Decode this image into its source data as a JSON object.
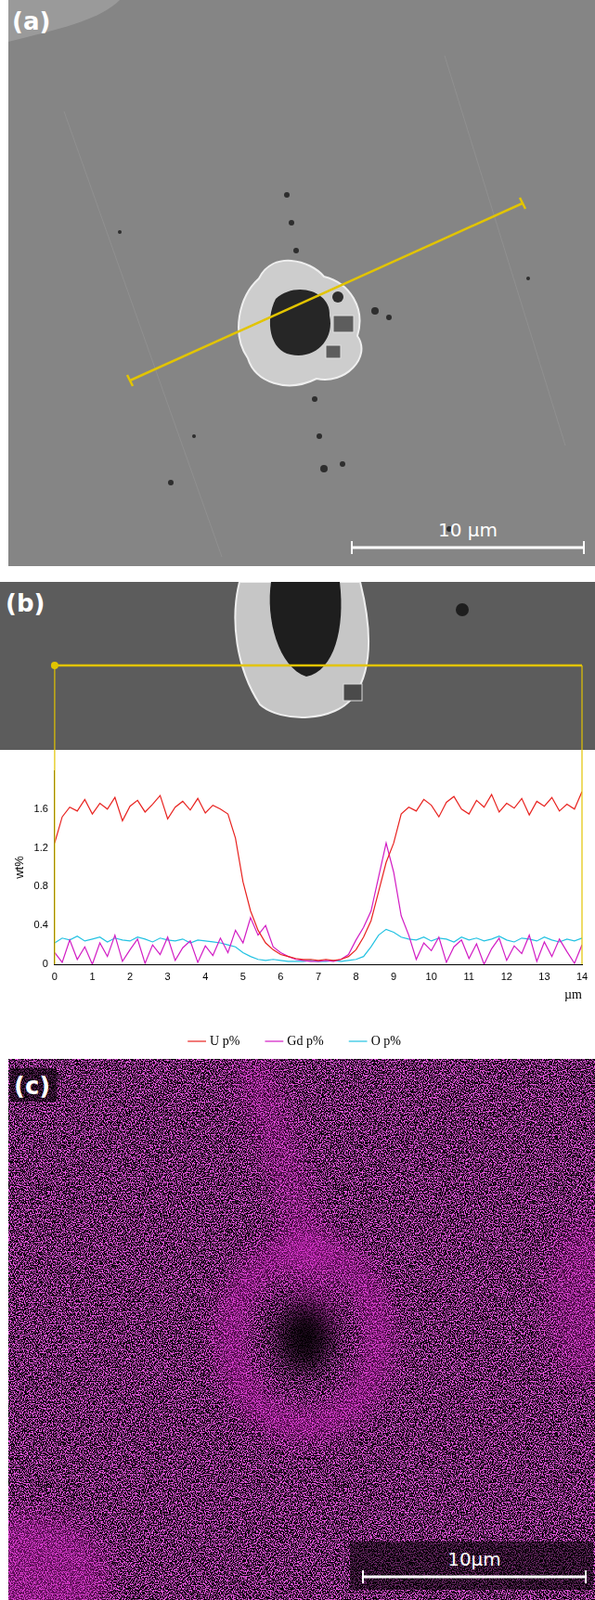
{
  "panels": {
    "a": {
      "label": "(a)",
      "scale_bar": "10 µm"
    },
    "b": {
      "label": "(b)"
    },
    "c": {
      "label": "(c)",
      "scale_bar": "10µm"
    }
  },
  "chart_data": {
    "type": "line",
    "x_label": "µm",
    "y_label": "wt%",
    "x": [
      0,
      0.2,
      0.4,
      0.6,
      0.8,
      1,
      1.2,
      1.4,
      1.6,
      1.8,
      2,
      2.2,
      2.4,
      2.6,
      2.8,
      3,
      3.2,
      3.4,
      3.6,
      3.8,
      4,
      4.2,
      4.4,
      4.6,
      4.8,
      5,
      5.2,
      5.4,
      5.6,
      5.8,
      6,
      6.2,
      6.4,
      6.6,
      6.8,
      7,
      7.2,
      7.4,
      7.6,
      7.8,
      8,
      8.2,
      8.4,
      8.6,
      8.8,
      9,
      9.2,
      9.4,
      9.6,
      9.8,
      10,
      10.2,
      10.4,
      10.6,
      10.8,
      11,
      11.2,
      11.4,
      11.6,
      11.8,
      12,
      12.2,
      12.4,
      12.6,
      12.8,
      13,
      13.2,
      13.4,
      13.6,
      13.8,
      14
    ],
    "series": [
      {
        "name": "U p%",
        "color": "#e8221f",
        "values": [
          1.25,
          1.52,
          1.62,
          1.58,
          1.7,
          1.55,
          1.66,
          1.6,
          1.72,
          1.48,
          1.63,
          1.69,
          1.57,
          1.65,
          1.74,
          1.5,
          1.62,
          1.68,
          1.59,
          1.71,
          1.56,
          1.64,
          1.6,
          1.55,
          1.3,
          0.85,
          0.55,
          0.35,
          0.22,
          0.15,
          0.1,
          0.08,
          0.06,
          0.05,
          0.05,
          0.04,
          0.05,
          0.04,
          0.05,
          0.08,
          0.15,
          0.28,
          0.45,
          0.75,
          1.05,
          1.25,
          1.55,
          1.62,
          1.58,
          1.7,
          1.64,
          1.52,
          1.67,
          1.73,
          1.6,
          1.55,
          1.69,
          1.62,
          1.75,
          1.57,
          1.66,
          1.61,
          1.71,
          1.54,
          1.68,
          1.63,
          1.72,
          1.58,
          1.65,
          1.6,
          1.78
        ]
      },
      {
        "name": "Gd p%",
        "color": "#d21cc4",
        "values": [
          0.12,
          0.02,
          0.25,
          0.05,
          0.18,
          0.0,
          0.22,
          0.08,
          0.3,
          0.03,
          0.15,
          0.26,
          0.01,
          0.2,
          0.1,
          0.28,
          0.04,
          0.17,
          0.24,
          0.02,
          0.19,
          0.09,
          0.27,
          0.12,
          0.35,
          0.22,
          0.48,
          0.3,
          0.4,
          0.18,
          0.12,
          0.08,
          0.05,
          0.04,
          0.03,
          0.03,
          0.04,
          0.03,
          0.05,
          0.1,
          0.25,
          0.38,
          0.55,
          0.9,
          1.25,
          0.95,
          0.5,
          0.3,
          0.05,
          0.22,
          0.14,
          0.28,
          0.02,
          0.18,
          0.25,
          0.06,
          0.21,
          0.0,
          0.16,
          0.27,
          0.04,
          0.19,
          0.11,
          0.3,
          0.03,
          0.23,
          0.08,
          0.26,
          0.13,
          0.01,
          0.2
        ]
      },
      {
        "name": "O p%",
        "color": "#22c2e2",
        "values": [
          0.22,
          0.27,
          0.25,
          0.29,
          0.24,
          0.26,
          0.28,
          0.23,
          0.27,
          0.25,
          0.24,
          0.28,
          0.26,
          0.23,
          0.27,
          0.25,
          0.24,
          0.26,
          0.22,
          0.25,
          0.24,
          0.23,
          0.22,
          0.2,
          0.18,
          0.12,
          0.08,
          0.05,
          0.04,
          0.05,
          0.04,
          0.03,
          0.03,
          0.03,
          0.04,
          0.03,
          0.03,
          0.04,
          0.03,
          0.04,
          0.05,
          0.08,
          0.18,
          0.3,
          0.36,
          0.33,
          0.28,
          0.26,
          0.25,
          0.28,
          0.24,
          0.27,
          0.26,
          0.23,
          0.28,
          0.25,
          0.27,
          0.24,
          0.26,
          0.29,
          0.25,
          0.23,
          0.27,
          0.26,
          0.24,
          0.28,
          0.25,
          0.23,
          0.26,
          0.24,
          0.27
        ]
      }
    ],
    "xlim": [
      0,
      14
    ],
    "xticks": [
      0,
      1,
      2,
      3,
      4,
      5,
      6,
      7,
      8,
      9,
      10,
      11,
      12,
      13,
      14
    ],
    "ylim": [
      0,
      2
    ],
    "yticks": [
      0,
      0.4,
      0.8,
      1.2,
      1.6
    ],
    "grid": false,
    "legend": "bottom"
  }
}
